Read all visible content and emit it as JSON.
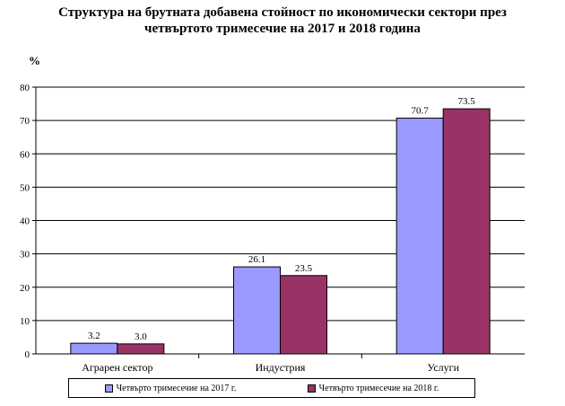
{
  "chart_data": {
    "type": "bar",
    "title": [
      "Структура на брутната добавена стойност по икономически сектори през",
      "четвъртото тримесечие на 2017 и 2018 година"
    ],
    "ylabel": "%",
    "ylim": [
      0,
      80
    ],
    "yticks": [
      0,
      10,
      20,
      30,
      40,
      50,
      60,
      70,
      80
    ],
    "categories": [
      "Аграрен сектор",
      "Индустрия",
      "Услуги"
    ],
    "series": [
      {
        "name": "Четвърто тримесечие на 2017 г.",
        "values": [
          3.2,
          26.1,
          70.7
        ],
        "labels": [
          "3.2",
          "26.1",
          "70.7"
        ],
        "color": "#9999ff"
      },
      {
        "name": "Четвърто тримесечие на 2018 г.",
        "values": [
          3.0,
          23.5,
          73.5
        ],
        "labels": [
          "3.0",
          "23.5",
          "73.5"
        ],
        "color": "#993366"
      }
    ],
    "grid": true,
    "legend": "bottom"
  }
}
